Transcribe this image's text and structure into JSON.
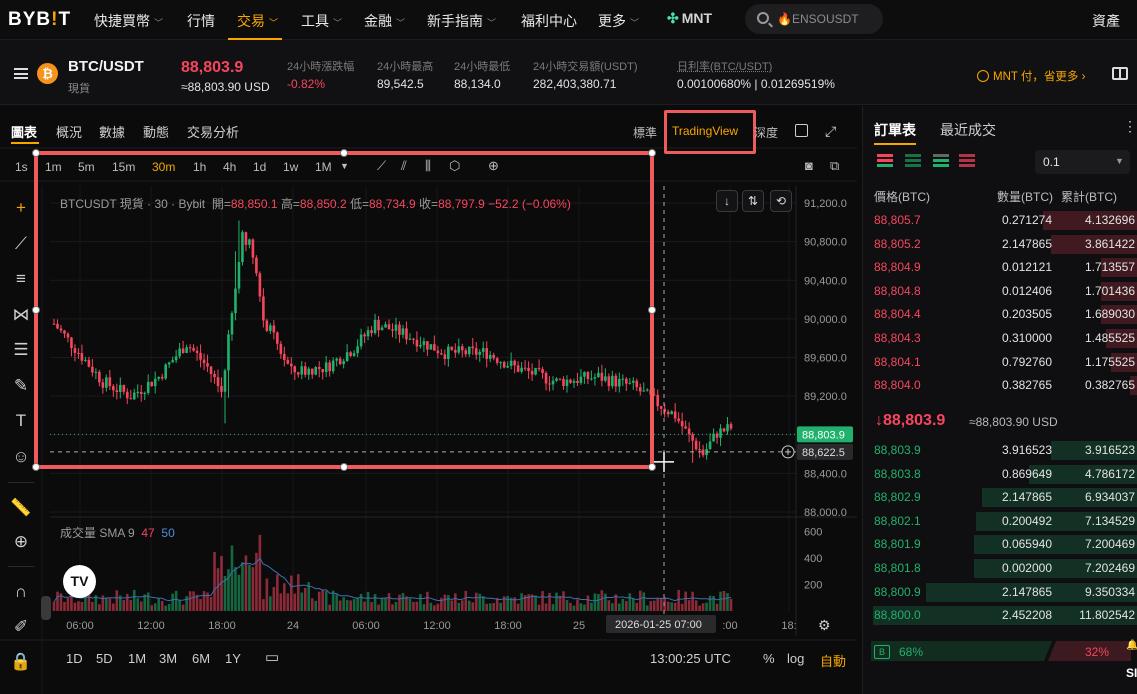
{
  "nav": {
    "logo_main": "BYB",
    "logo_mark": "!",
    "logo_end": "T",
    "items": [
      "快捷買幣",
      "行情",
      "交易",
      "工具",
      "金融",
      "新手指南",
      "福利中心",
      "更多"
    ],
    "mnt_label": "MNT",
    "search_placeholder": "🔥ENSOUSDT",
    "assets_label": "資產"
  },
  "ticker": {
    "pair": "BTC/USDT",
    "pair_sub": "現貨",
    "coin_glyph": "₿",
    "last_price": "88,803.9",
    "last_usd": "≈88,803.90 USD",
    "stats": [
      {
        "label": "24小時漲跌幅",
        "value": "-0.82%"
      },
      {
        "label": "24小時最高",
        "value": "89,542.5"
      },
      {
        "label": "24小時最低",
        "value": "88,134.0"
      },
      {
        "label": "24小時交易額(USDT)",
        "value": "282,403,380.71"
      },
      {
        "label": "日利率(BTC/USDT)",
        "value": "0.00100680% | 0.01269519%"
      }
    ],
    "promo": "MNT 付，省更多 ›"
  },
  "chart_tabs": [
    "圖表",
    "概況",
    "數據",
    "動態",
    "交易分析"
  ],
  "view_modes": {
    "standard": "標準",
    "tradingview": "TradingView",
    "depth": "深度"
  },
  "timeframes": [
    "1s",
    "1m",
    "5m",
    "15m",
    "30m",
    "1h",
    "4h",
    "1d",
    "1w",
    "1M"
  ],
  "active_timeframe": "30m",
  "legend": {
    "symbol": "BTCUSDT 現貨 · 30 · Bybit",
    "open_label": "開=",
    "open": "88,850.1",
    "high_label": "高=",
    "high": "88,850.2",
    "low_label": "低=",
    "low": "88,734.9",
    "close_label": "收=",
    "close": "88,797.9",
    "change": "−52.2 (−0.06%)"
  },
  "volume_legend": {
    "label": "成交量 SMA 9",
    "v1": "47",
    "v2": "50"
  },
  "tv_badge": "TV",
  "price_axis": [
    "91,200.0",
    "90,800.0",
    "90,400.0",
    "90,000.0",
    "89,600.0",
    "89,200.0",
    "88,800.0",
    "88,400.0",
    "88,000.0"
  ],
  "current_price_tag": "88,803.9",
  "crosshair_price_tag": "88,622.5",
  "volume_axis": [
    "600",
    "400",
    "200"
  ],
  "time_axis": [
    "06:00",
    "12:00",
    "18:00",
    "24",
    "06:00",
    "12:00",
    "18:00",
    "25",
    ":00",
    "18:"
  ],
  "crosshair_time": "2026-01-25   07:00",
  "ranges": [
    "1D",
    "5D",
    "1M",
    "3M",
    "6M",
    "1Y"
  ],
  "clock": "13:00:25 UTC",
  "scale_opts": [
    "%",
    "log",
    "自動"
  ],
  "order_book": {
    "tabs": [
      "訂單表",
      "最近成交"
    ],
    "tick": "0.1",
    "headers": [
      "價格(BTC)",
      "數量(BTC)",
      "累計(BTC)"
    ],
    "asks": [
      {
        "p": "88,805.7",
        "q": "0.271274",
        "c": "4.132696",
        "depth": 0.36
      },
      {
        "p": "88,805.2",
        "q": "2.147865",
        "c": "3.861422",
        "depth": 0.33
      },
      {
        "p": "88,804.9",
        "q": "0.012121",
        "c": "1.713557",
        "depth": 0.14
      },
      {
        "p": "88,804.8",
        "q": "0.012406",
        "c": "1.701436",
        "depth": 0.14
      },
      {
        "p": "88,804.4",
        "q": "0.203505",
        "c": "1.689030",
        "depth": 0.14
      },
      {
        "p": "88,804.3",
        "q": "0.310000",
        "c": "1.485525",
        "depth": 0.12
      },
      {
        "p": "88,804.1",
        "q": "0.792760",
        "c": "1.175525",
        "depth": 0.1
      },
      {
        "p": "88,804.0",
        "q": "0.382765",
        "c": "0.382765",
        "depth": 0.03
      }
    ],
    "mid_price": "↓88,803.9",
    "mid_usd": "≈88,803.90 USD",
    "bids": [
      {
        "p": "88,803.9",
        "q": "3.916523",
        "c": "3.916523",
        "depth": 0.33
      },
      {
        "p": "88,803.8",
        "q": "0.869649",
        "c": "4.786172",
        "depth": 0.41
      },
      {
        "p": "88,802.9",
        "q": "2.147865",
        "c": "6.934037",
        "depth": 0.59
      },
      {
        "p": "88,802.1",
        "q": "0.200492",
        "c": "7.134529",
        "depth": 0.61
      },
      {
        "p": "88,801.9",
        "q": "0.065940",
        "c": "7.200469",
        "depth": 0.62
      },
      {
        "p": "88,801.8",
        "q": "0.002000",
        "c": "7.202469",
        "depth": 0.62
      },
      {
        "p": "88,800.9",
        "q": "2.147865",
        "c": "9.350334",
        "depth": 0.8
      },
      {
        "p": "88,800.0",
        "q": "2.452208",
        "c": "11.802542",
        "depth": 1.0
      }
    ],
    "buy_ratio_label": "B",
    "buy_ratio": "68%",
    "sell_ratio": "32%",
    "sell_tag": "🔔",
    "sell_tag_text": "SI"
  },
  "colors": {
    "up": "#20b26c",
    "down": "#f6465d",
    "accent": "#f7a600",
    "highlight": "#ef5b5b"
  }
}
